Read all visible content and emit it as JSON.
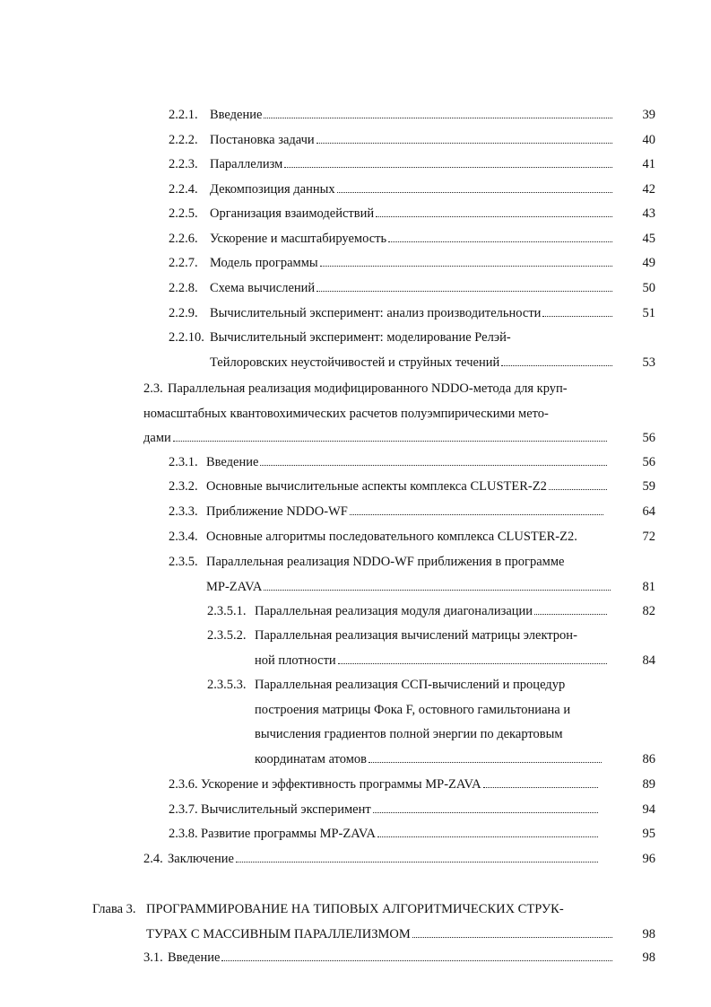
{
  "entries": [
    {
      "number": "2.2.1.",
      "lines": [
        "Введение"
      ],
      "page": 39
    },
    {
      "number": "2.2.2.",
      "lines": [
        "Постановка задачи"
      ],
      "page": 40
    },
    {
      "number": "2.2.3.",
      "lines": [
        "Параллелизм"
      ],
      "page": 41
    },
    {
      "number": "2.2.4.",
      "lines": [
        "Декомпозиция данных"
      ],
      "page": 42
    },
    {
      "number": "2.2.5.",
      "lines": [
        "Организация взаимодействий"
      ],
      "page": 43
    },
    {
      "number": "2.2.6.",
      "lines": [
        "Ускорение и масштабируемость"
      ],
      "page": 45
    },
    {
      "number": "2.2.7.",
      "lines": [
        "Модель программы"
      ],
      "page": 49
    },
    {
      "number": "2.2.8.",
      "lines": [
        "Схема вычислений"
      ],
      "page": 50
    },
    {
      "number": "2.2.9.",
      "lines": [
        "Вычислительный эксперимент: анализ производительности"
      ],
      "page": 51
    },
    {
      "number": "2.2.10.",
      "lines": [
        "Вычислительный эксперимент: моделирование Релэй-",
        "Тейлоровских неустойчивостей и струйных течений"
      ],
      "page": 53
    },
    {
      "number": "2.3.",
      "lines": [
        "Параллельная реализация модифицированного NDDO-метода для круп-",
        "номасштабных квантовохимических расчетов полуэмпирическими мето-",
        "дами"
      ],
      "page": 56
    },
    {
      "number": "2.3.1.",
      "lines": [
        "Введение"
      ],
      "page": 56
    },
    {
      "number": "2.3.2.",
      "lines": [
        "Основные вычислительные аспекты комплекса CLUSTER-Z2"
      ],
      "page": 59
    },
    {
      "number": "2.3.3.",
      "lines": [
        "Приближение NDDO-WF"
      ],
      "page": 64
    },
    {
      "number": "2.3.4.",
      "lines": [
        "Основные алгоритмы последовательного комплекса CLUSTER-Z2."
      ],
      "page": 72
    },
    {
      "number": "2.3.5.",
      "lines": [
        "Параллельная реализация NDDO-WF приближения в программе",
        "MP-ZAVA"
      ],
      "page": 81
    },
    {
      "number": "2.3.5.1.",
      "lines": [
        "Параллельная реализация модуля диагонализации"
      ],
      "page": 82
    },
    {
      "number": "2.3.5.2.",
      "lines": [
        "Параллельная реализация вычислений матрицы электрон-",
        "ной плотности"
      ],
      "page": 84
    },
    {
      "number": "2.3.5.3.",
      "lines": [
        "Параллельная реализация ССП-вычислений и процедур",
        "построения матрицы Фока F, остовного гамильтониана и",
        "вычисления градиентов полной энергии  по декартовым",
        "координатам атомов"
      ],
      "page": 86
    },
    {
      "number": "2.3.6.",
      "lines": [
        "Ускорение и эффективность программы MP-ZAVA"
      ],
      "page": 89
    },
    {
      "number": "2.3.7.",
      "lines": [
        "Вычислительный эксперимент"
      ],
      "page": 94
    },
    {
      "number": "2.3.8.",
      "lines": [
        "Развитие программы MP-ZAVA"
      ],
      "page": 95
    },
    {
      "number": "2.4.",
      "lines": [
        "Заключение"
      ],
      "page": 96
    },
    {
      "number": "Глава 3.",
      "lines": [
        "ПРОГРАММИРОВАНИЕ НА ТИПОВЫХ АЛГОРИТМИЧЕСКИХ СТРУК-",
        "ТУРАХ С МАССИВНЫМ ПАРАЛЛЕЛИЗМОМ"
      ],
      "page": 98
    },
    {
      "number": "3.1.",
      "lines": [
        "Введение"
      ],
      "page": 98
    }
  ]
}
